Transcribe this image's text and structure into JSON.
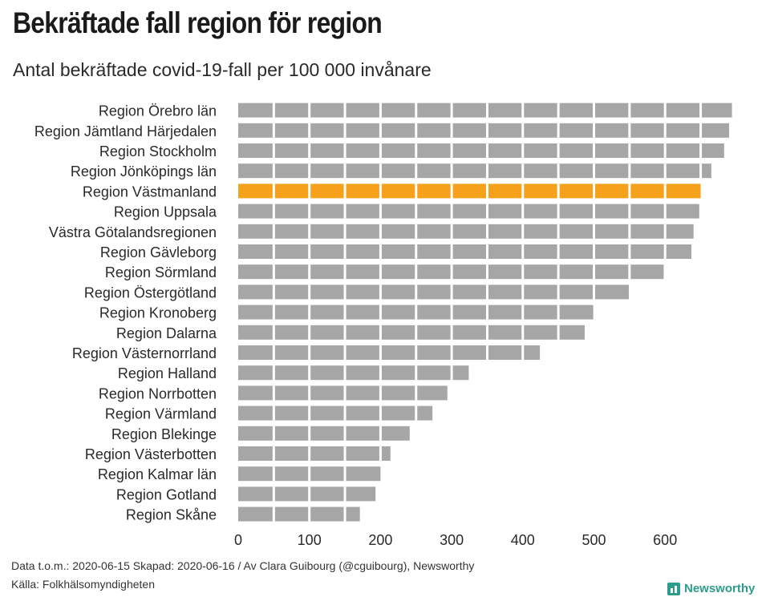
{
  "chart_data": {
    "type": "bar",
    "orientation": "horizontal",
    "title": "Bekräftade fall region för region",
    "subtitle": "Antal bekräftade covid-19-fall per 100 000 invånare",
    "categories": [
      "Region Örebro län",
      "Region Jämtland Härjedalen",
      "Region Stockholm",
      "Region Jönköpings län",
      "Region Västmanland",
      "Region Uppsala",
      "Västra Götalandsregionen",
      "Region Gävleborg",
      "Region Sörmland",
      "Region Östergötland",
      "Region Kronoberg",
      "Region Dalarna",
      "Region Västernorrland",
      "Region Halland",
      "Region Norrbotten",
      "Region Värmland",
      "Region Blekinge",
      "Region Västerbotten",
      "Region Kalmar län",
      "Region Gotland",
      "Region Skåne"
    ],
    "values": [
      694,
      690,
      683,
      665,
      650,
      648,
      640,
      637,
      598,
      549,
      499,
      487,
      424,
      324,
      294,
      273,
      241,
      214,
      200,
      193,
      171
    ],
    "highlight": "Region Västmanland",
    "xlim": [
      0,
      700
    ],
    "xticks": [
      0,
      100,
      200,
      300,
      400,
      500,
      600
    ],
    "xlabel": "",
    "ylabel": "",
    "grid": false,
    "colors": {
      "bar": "#a6a6a6",
      "highlight": "#f5a11c",
      "segment_line": "#ffffff"
    }
  },
  "footer": {
    "line1": "Data t.o.m.: 2020-06-15 Skapad: 2020-06-16 / Av Clara Guibourg (@cguibourg), Newsworthy",
    "line2": "Källa: Folkhälsomyndigheten"
  },
  "brand": {
    "name": "Newsworthy",
    "icon": "bar-chart-logo-icon"
  }
}
